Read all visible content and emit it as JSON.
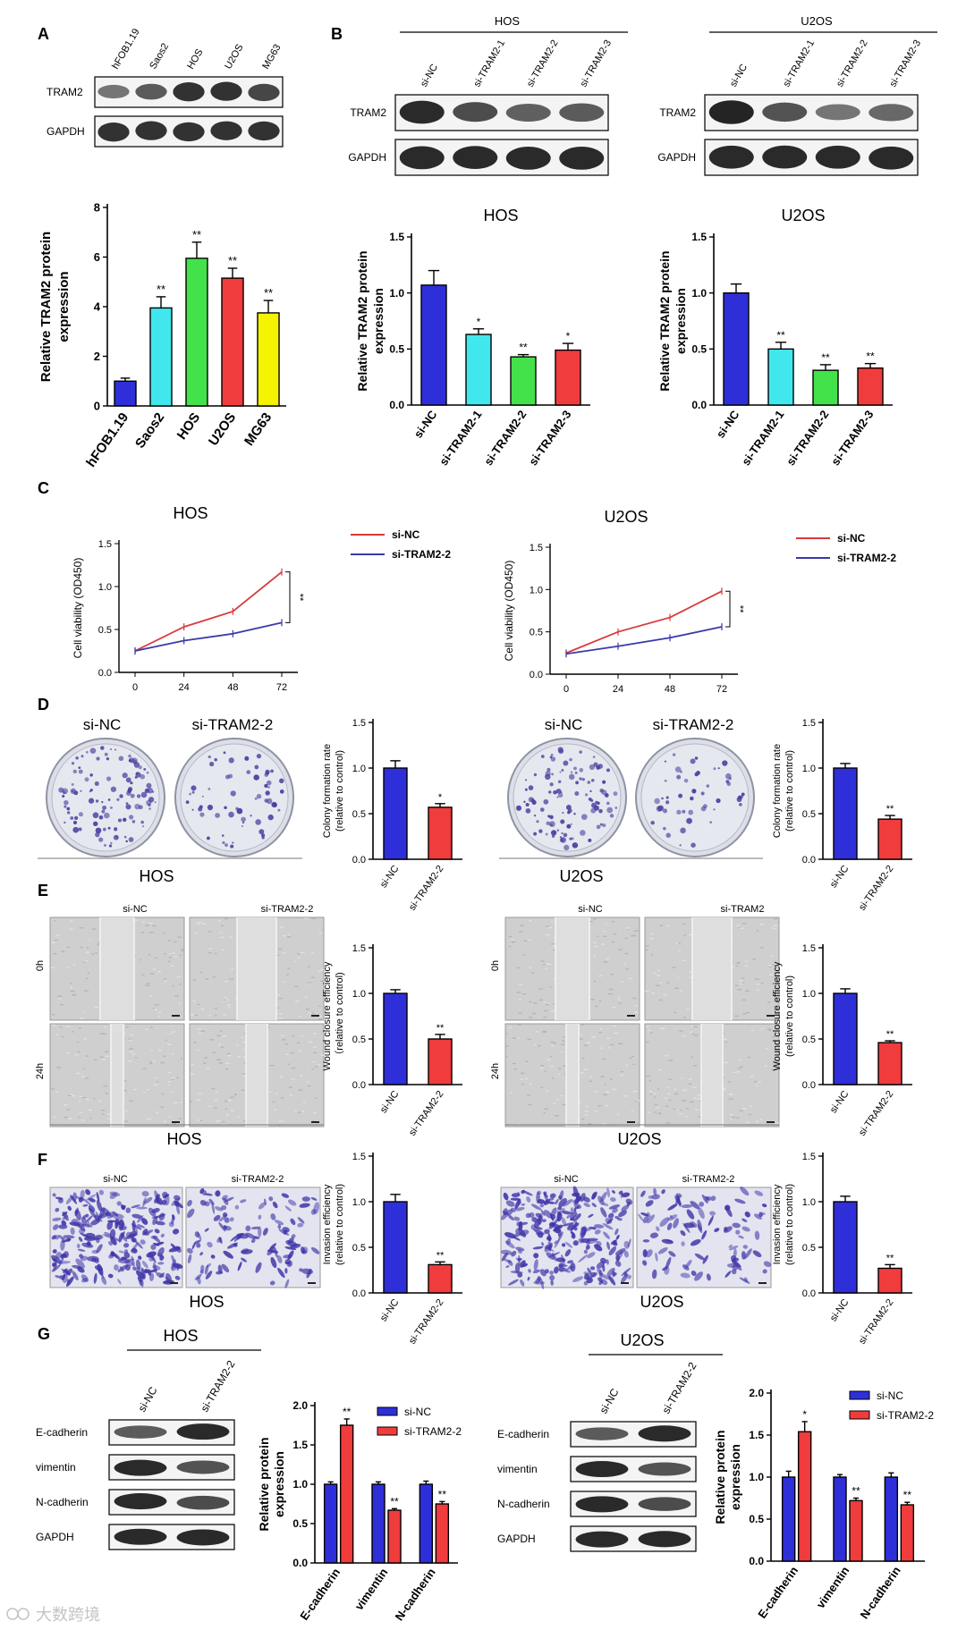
{
  "watermark": "大数跨境",
  "panels": {
    "A": {
      "letter": "A",
      "blot_lanes": [
        "hFOB1.19",
        "Saos2",
        "HOS",
        "U2OS",
        "MG63"
      ],
      "blot_rows": [
        "TRAM2",
        "GAPDH"
      ],
      "band_intensity": {
        "TRAM2": [
          0.35,
          0.55,
          0.85,
          0.85,
          0.7
        ],
        "GAPDH": [
          0.85,
          0.85,
          0.85,
          0.85,
          0.85
        ]
      }
    },
    "B": {
      "letter": "B",
      "groups": [
        {
          "title": "HOS",
          "lanes": [
            "si-NC",
            "si-TRAM2-1",
            "si-TRAM2-2",
            "si-TRAM2-3"
          ],
          "rows": [
            "TRAM2",
            "GAPDH"
          ],
          "band_intensity": {
            "TRAM2": [
              0.9,
              0.65,
              0.5,
              0.55
            ],
            "GAPDH": [
              0.9,
              0.9,
              0.9,
              0.9
            ]
          }
        },
        {
          "title": "U2OS",
          "lanes": [
            "si-NC",
            "si-TRAM2-1",
            "si-TRAM2-2",
            "si-TRAM2-3"
          ],
          "rows": [
            "TRAM2",
            "GAPDH"
          ],
          "band_intensity": {
            "TRAM2": [
              0.95,
              0.6,
              0.35,
              0.45
            ],
            "GAPDH": [
              0.9,
              0.9,
              0.9,
              0.9
            ]
          }
        }
      ]
    },
    "C": {
      "letter": "C"
    },
    "D": {
      "letter": "D",
      "groups": [
        {
          "title": "HOS",
          "plates": [
            "si-NC",
            "si-TRAM2-2"
          ],
          "colony_density": [
            1.0,
            0.55
          ]
        },
        {
          "title": "U2OS",
          "plates": [
            "si-NC",
            "si-TRAM2-2"
          ],
          "colony_density": [
            1.0,
            0.45
          ]
        }
      ]
    },
    "E": {
      "letter": "E",
      "groups": [
        {
          "title": "HOS",
          "columns": [
            "si-NC",
            "si-TRAM2-2"
          ],
          "rows": [
            "0h",
            "24h"
          ]
        },
        {
          "title": "U2OS",
          "columns": [
            "si-NC",
            "si-TRAM2"
          ],
          "rows": [
            "0h",
            "24h"
          ]
        }
      ]
    },
    "F": {
      "letter": "F",
      "groups": [
        {
          "title": "HOS",
          "images": [
            "si-NC",
            "si-TRAM2-2"
          ],
          "cell_density": [
            1.0,
            0.45
          ]
        },
        {
          "title": "U2OS",
          "images": [
            "si-NC",
            "si-TRAM2-2"
          ],
          "cell_density": [
            1.0,
            0.4
          ]
        }
      ]
    },
    "G": {
      "letter": "G",
      "groups": [
        {
          "title": "HOS",
          "lanes": [
            "si-NC",
            "si-TRAM2-2"
          ],
          "rows": [
            "E-cadherin",
            "vimentin",
            "N-cadherin",
            "GAPDH"
          ],
          "band_intensity": {
            "E-cadherin": [
              0.55,
              0.9
            ],
            "vimentin": [
              0.9,
              0.6
            ],
            "N-cadherin": [
              0.9,
              0.65
            ],
            "GAPDH": [
              0.9,
              0.9
            ]
          }
        },
        {
          "title": "U2OS",
          "lanes": [
            "si-NC",
            "si-TRAM2-2"
          ],
          "rows": [
            "E-cadherin",
            "vimentin",
            "N-cadherin",
            "GAPDH"
          ],
          "band_intensity": {
            "E-cadherin": [
              0.55,
              0.9
            ],
            "vimentin": [
              0.9,
              0.6
            ],
            "N-cadherin": [
              0.9,
              0.65
            ],
            "GAPDH": [
              0.9,
              0.9
            ]
          }
        }
      ]
    }
  },
  "chart_data": [
    {
      "id": "A",
      "type": "bar",
      "title": "",
      "ylabel": "Relative TRAM2 protein expression",
      "categories": [
        "hFOB1.19",
        "Saos2",
        "HOS",
        "U2OS",
        "MG63"
      ],
      "values": [
        1.0,
        3.95,
        5.95,
        5.15,
        3.75
      ],
      "errors": [
        0.12,
        0.45,
        0.65,
        0.4,
        0.5
      ],
      "sig": [
        "",
        "**",
        "**",
        "**",
        "**"
      ],
      "colors": [
        "#2f2fd9",
        "#40e8ee",
        "#43e24b",
        "#f03c3c",
        "#f4f400"
      ],
      "ylim": [
        0,
        8
      ],
      "yticks": [
        0,
        2,
        4,
        6,
        8
      ]
    },
    {
      "id": "B-HOS",
      "type": "bar",
      "title": "HOS",
      "ylabel": "Relative TRAM2 protein expression",
      "categories": [
        "si-NC",
        "si-TRAM2-1",
        "si-TRAM2-2",
        "si-TRAM2-3"
      ],
      "values": [
        1.07,
        0.63,
        0.43,
        0.49
      ],
      "errors": [
        0.13,
        0.05,
        0.02,
        0.06
      ],
      "sig": [
        "",
        "*",
        "**",
        "*"
      ],
      "colors": [
        "#2f2fd9",
        "#40e8ee",
        "#43e24b",
        "#f03c3c"
      ],
      "ylim": [
        0,
        1.5
      ],
      "yticks": [
        0.0,
        0.5,
        1.0,
        1.5
      ]
    },
    {
      "id": "B-U2OS",
      "type": "bar",
      "title": "U2OS",
      "ylabel": "Relative TRAM2 protein expression",
      "categories": [
        "si-NC",
        "si-TRAM2-1",
        "si-TRAM2-2",
        "si-TRAM2-3"
      ],
      "values": [
        1.0,
        0.5,
        0.31,
        0.33
      ],
      "errors": [
        0.08,
        0.06,
        0.05,
        0.04
      ],
      "sig": [
        "",
        "**",
        "**",
        "**"
      ],
      "colors": [
        "#2f2fd9",
        "#40e8ee",
        "#43e24b",
        "#f03c3c"
      ],
      "ylim": [
        0,
        1.5
      ],
      "yticks": [
        0.0,
        0.5,
        1.0,
        1.5
      ]
    },
    {
      "id": "C-HOS",
      "type": "line",
      "title": "HOS",
      "ylabel": "Cell viability (OD450)",
      "x": [
        0,
        24,
        48,
        72
      ],
      "series": [
        {
          "name": "si-NC",
          "values": [
            0.25,
            0.53,
            0.71,
            1.17
          ],
          "color": "#d93a3a"
        },
        {
          "name": "si-TRAM2-2",
          "values": [
            0.25,
            0.37,
            0.45,
            0.58
          ],
          "color": "#3a3aaa"
        }
      ],
      "sig": "**",
      "ylim": [
        0,
        1.5
      ],
      "yticks": [
        0.0,
        0.5,
        1.0,
        1.5
      ],
      "legend": "right"
    },
    {
      "id": "C-U2OS",
      "type": "line",
      "title": "U2OS",
      "ylabel": "Cell viability (OD450)",
      "x": [
        0,
        24,
        48,
        72
      ],
      "series": [
        {
          "name": "si-NC",
          "values": [
            0.25,
            0.5,
            0.67,
            0.98
          ],
          "color": "#d93a3a"
        },
        {
          "name": "si-TRAM2-2",
          "values": [
            0.24,
            0.33,
            0.43,
            0.56
          ],
          "color": "#3a3aaa"
        }
      ],
      "sig": "**",
      "ylim": [
        0,
        1.5
      ],
      "yticks": [
        0.0,
        0.5,
        1.0,
        1.5
      ],
      "legend": "right"
    },
    {
      "id": "D-HOS",
      "type": "bar",
      "title": "",
      "ylabel": "Colony formation rate (relative to control)",
      "categories": [
        "si-NC",
        "si-TRAM2-2"
      ],
      "values": [
        1.0,
        0.57
      ],
      "errors": [
        0.08,
        0.04
      ],
      "sig": [
        "",
        "*"
      ],
      "colors": [
        "#2f2fd9",
        "#f03c3c"
      ],
      "ylim": [
        0,
        1.5
      ],
      "yticks": [
        0.0,
        0.5,
        1.0,
        1.5
      ]
    },
    {
      "id": "D-U2OS",
      "type": "bar",
      "title": "",
      "ylabel": "Colony formation rate (relative to control)",
      "categories": [
        "si-NC",
        "si-TRAM2-2"
      ],
      "values": [
        1.0,
        0.44
      ],
      "errors": [
        0.05,
        0.04
      ],
      "sig": [
        "",
        "**"
      ],
      "colors": [
        "#2f2fd9",
        "#f03c3c"
      ],
      "ylim": [
        0,
        1.5
      ],
      "yticks": [
        0.0,
        0.5,
        1.0,
        1.5
      ]
    },
    {
      "id": "E-HOS",
      "type": "bar",
      "title": "",
      "ylabel": "Wound closure efficiency （relative to control)",
      "categories": [
        "si-NC",
        "si-TRAM2-2"
      ],
      "values": [
        1.0,
        0.5
      ],
      "errors": [
        0.04,
        0.05
      ],
      "sig": [
        "",
        "**"
      ],
      "colors": [
        "#2f2fd9",
        "#f03c3c"
      ],
      "ylim": [
        0,
        1.5
      ],
      "yticks": [
        0.0,
        0.5,
        1.0,
        1.5
      ]
    },
    {
      "id": "E-U2OS",
      "type": "bar",
      "title": "",
      "ylabel": "Wound closure efficiency (relative to control)",
      "categories": [
        "si-NC",
        "si-TRAM2-2"
      ],
      "values": [
        1.0,
        0.46
      ],
      "errors": [
        0.05,
        0.02
      ],
      "sig": [
        "",
        "**"
      ],
      "colors": [
        "#2f2fd9",
        "#f03c3c"
      ],
      "ylim": [
        0,
        1.5
      ],
      "yticks": [
        0.0,
        0.5,
        1.0,
        1.5
      ]
    },
    {
      "id": "F-HOS",
      "type": "bar",
      "title": "",
      "ylabel": "Invasion efficiency (relative to control)",
      "categories": [
        "si-NC",
        "si-TRAM2-2"
      ],
      "values": [
        1.0,
        0.31
      ],
      "errors": [
        0.08,
        0.03
      ],
      "sig": [
        "",
        "**"
      ],
      "colors": [
        "#2f2fd9",
        "#f03c3c"
      ],
      "ylim": [
        0,
        1.5
      ],
      "yticks": [
        0.0,
        0.5,
        1.0,
        1.5
      ]
    },
    {
      "id": "F-U2OS",
      "type": "bar",
      "title": "",
      "ylabel": "Invasion efficiency (relative to control)",
      "categories": [
        "si-NC",
        "si-TRAM2-2"
      ],
      "values": [
        1.0,
        0.27
      ],
      "errors": [
        0.06,
        0.04
      ],
      "sig": [
        "",
        "**"
      ],
      "colors": [
        "#2f2fd9",
        "#f03c3c"
      ],
      "ylim": [
        0,
        1.5
      ],
      "yticks": [
        0.0,
        0.5,
        1.0,
        1.5
      ]
    },
    {
      "id": "G-HOS",
      "type": "bar",
      "title": "",
      "ylabel": "Relative protein expression",
      "categories": [
        "E-cadherin",
        "vimentin",
        "N-cadherin"
      ],
      "series": [
        {
          "name": "si-NC",
          "values": [
            1.0,
            1.0,
            1.0
          ],
          "errors": [
            0.03,
            0.03,
            0.04
          ],
          "color": "#2f2fd9"
        },
        {
          "name": "si-TRAM2-2",
          "values": [
            1.75,
            0.67,
            0.75
          ],
          "errors": [
            0.08,
            0.02,
            0.03
          ],
          "color": "#f03c3c"
        }
      ],
      "sig": [
        [
          "",
          "**"
        ],
        [
          "",
          "**"
        ],
        [
          "",
          "**"
        ]
      ],
      "ylim": [
        0,
        2.0
      ],
      "yticks": [
        0.0,
        0.5,
        1.0,
        1.5,
        2.0
      ],
      "legend": "top-right"
    },
    {
      "id": "G-U2OS",
      "type": "bar",
      "title": "",
      "ylabel": "Relative protein expression",
      "categories": [
        "E-cadherin",
        "vimentin",
        "N-cadherin"
      ],
      "series": [
        {
          "name": "si-NC",
          "values": [
            1.0,
            1.0,
            1.0
          ],
          "errors": [
            0.07,
            0.03,
            0.05
          ],
          "color": "#2f2fd9"
        },
        {
          "name": "si-TRAM2-2",
          "values": [
            1.54,
            0.72,
            0.67
          ],
          "errors": [
            0.12,
            0.03,
            0.03
          ],
          "color": "#f03c3c"
        }
      ],
      "sig": [
        [
          "",
          "*"
        ],
        [
          "",
          "**"
        ],
        [
          "",
          "**"
        ]
      ],
      "ylim": [
        0,
        2.0
      ],
      "yticks": [
        0.0,
        0.5,
        1.0,
        1.5,
        2.0
      ],
      "legend": "top-right"
    }
  ]
}
